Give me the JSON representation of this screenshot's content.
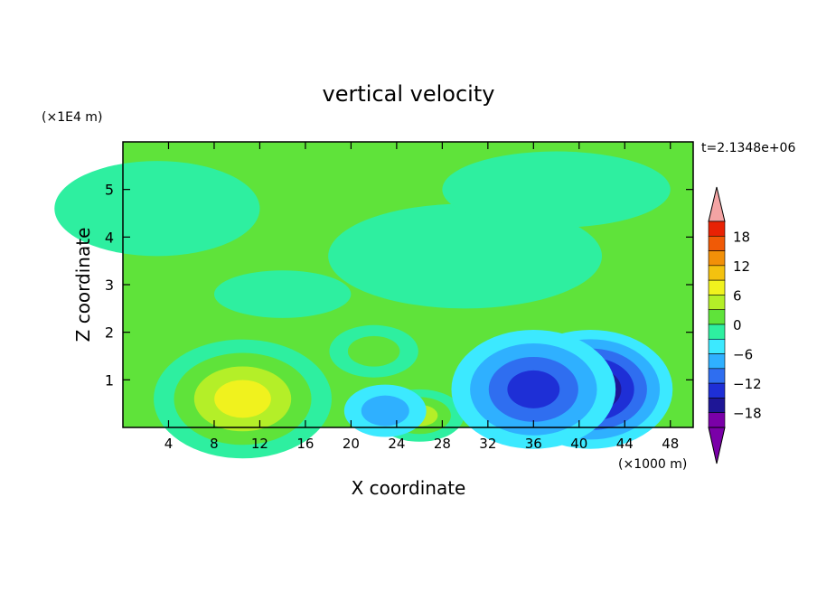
{
  "chart_data": {
    "type": "heatmap",
    "title": "vertical velocity",
    "xlabel": "X coordinate",
    "ylabel": "Z coordinate",
    "x_unit": "(×1000 m)",
    "y_unit": "(×1E4 m)",
    "time_label": "t=2.1348e+06",
    "xlim": [
      0,
      50
    ],
    "ylim": [
      0,
      6
    ],
    "x_ticks": [
      4,
      8,
      12,
      16,
      20,
      24,
      28,
      32,
      36,
      40,
      44,
      48
    ],
    "y_ticks": [
      1,
      2,
      3,
      4,
      5
    ],
    "colorbar": {
      "levels": [
        -21,
        -18,
        -15,
        -12,
        -9,
        -6,
        -3,
        0,
        3,
        6,
        9,
        12,
        15,
        18,
        21
      ],
      "tick_labels": [
        18,
        12,
        6,
        0,
        -6,
        -12,
        -18
      ],
      "colors": [
        "#7a00a8",
        "#1e1696",
        "#1e2fd6",
        "#2f6ef0",
        "#2fb0ff",
        "#3ce9ff",
        "#2eefa0",
        "#5fe33a",
        "#b4ef28",
        "#f0f21e",
        "#f4c20f",
        "#f29008",
        "#f05a06",
        "#e82204"
      ],
      "over_color": "#f4a4a4",
      "under_color": "#7a00a8"
    },
    "background_value": 0,
    "features": [
      {
        "type": "updraft",
        "center_x": 10.5,
        "center_z": 0.6,
        "peak": 11
      },
      {
        "type": "updraft",
        "center_x": 26,
        "center_z": 0.25,
        "peak": 7
      },
      {
        "type": "updraft",
        "center_x": 22,
        "center_z": 1.6,
        "peak": 4
      },
      {
        "type": "downdraft",
        "center_x": 41,
        "center_z": 0.8,
        "peak": -16
      },
      {
        "type": "downdraft",
        "center_x": 36,
        "center_z": 0.8,
        "peak": -11
      },
      {
        "type": "downdraft",
        "center_x": 23,
        "center_z": 0.35,
        "peak": -5
      }
    ]
  }
}
